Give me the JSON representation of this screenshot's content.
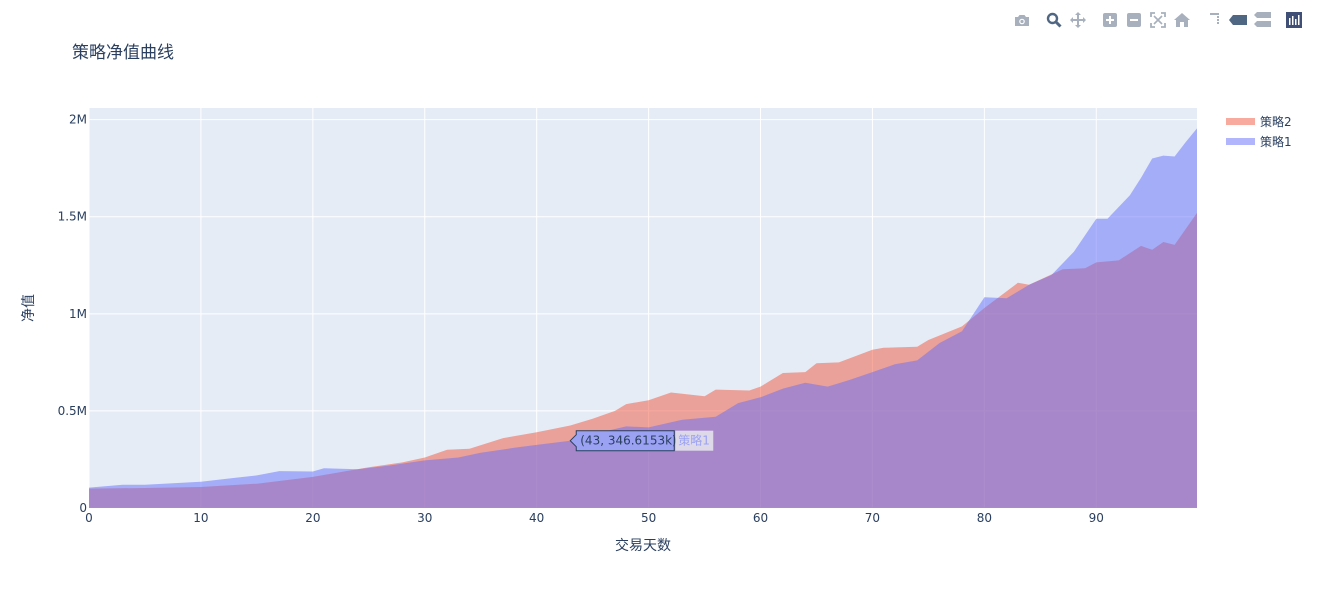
{
  "modebar": {
    "icons": [
      "camera-icon",
      "zoom-icon",
      "pan-icon",
      "zoom-in-icon",
      "zoom-out-icon",
      "autoscale-icon",
      "reset-axes-icon",
      "spike-lines-icon",
      "hover-closest-icon",
      "hover-compare-icon",
      "plotly-logo-icon"
    ]
  },
  "colors": {
    "series1": "#636efa",
    "series2": "#ef553b",
    "plot_bg": "#e5ecf6",
    "grid": "#ffffff",
    "text": "#2a3f5f"
  },
  "hover": {
    "label": "(43, 346.6153k)",
    "series_name": "策略1",
    "x": 43,
    "y": 346615.3
  },
  "chart_data": {
    "type": "area",
    "title": "策略净值曲线",
    "xlabel": "交易天数",
    "ylabel": "净值",
    "xlim": [
      0,
      99
    ],
    "ylim": [
      0,
      2060000
    ],
    "x_ticks": [
      0,
      10,
      20,
      30,
      40,
      50,
      60,
      70,
      80,
      90
    ],
    "y_ticks": [
      {
        "value": 0,
        "label": "0"
      },
      {
        "value": 500000,
        "label": "0.5M"
      },
      {
        "value": 1000000,
        "label": "1M"
      },
      {
        "value": 1500000,
        "label": "1.5M"
      },
      {
        "value": 2000000,
        "label": "2M"
      }
    ],
    "grid": true,
    "legend_position": "top-right",
    "series": [
      {
        "name": "策略2",
        "color": "#ef553b",
        "points": [
          [
            0,
            100000
          ],
          [
            5,
            103000
          ],
          [
            10,
            108000
          ],
          [
            15,
            125000
          ],
          [
            20,
            160000
          ],
          [
            25,
            210000
          ],
          [
            28,
            235000
          ],
          [
            30,
            260000
          ],
          [
            32,
            300000
          ],
          [
            34,
            305000
          ],
          [
            37,
            360000
          ],
          [
            40,
            390000
          ],
          [
            43,
            425000
          ],
          [
            45,
            460000
          ],
          [
            47,
            500000
          ],
          [
            48,
            535000
          ],
          [
            50,
            555000
          ],
          [
            52,
            595000
          ],
          [
            55,
            575000
          ],
          [
            56,
            610000
          ],
          [
            59,
            605000
          ],
          [
            60,
            625000
          ],
          [
            62,
            695000
          ],
          [
            64,
            700000
          ],
          [
            65,
            745000
          ],
          [
            67,
            750000
          ],
          [
            70,
            815000
          ],
          [
            71,
            825000
          ],
          [
            74,
            830000
          ],
          [
            75,
            865000
          ],
          [
            78,
            935000
          ],
          [
            80,
            1030000
          ],
          [
            83,
            1160000
          ],
          [
            84,
            1150000
          ],
          [
            87,
            1230000
          ],
          [
            89,
            1235000
          ],
          [
            90,
            1265000
          ],
          [
            92,
            1275000
          ],
          [
            94,
            1350000
          ],
          [
            95,
            1330000
          ],
          [
            96,
            1370000
          ],
          [
            97,
            1355000
          ],
          [
            99,
            1520000
          ]
        ]
      },
      {
        "name": "策略1",
        "color": "#636efa",
        "points": [
          [
            0,
            105000
          ],
          [
            3,
            120000
          ],
          [
            5,
            120000
          ],
          [
            10,
            135000
          ],
          [
            13,
            155000
          ],
          [
            15,
            168000
          ],
          [
            17,
            190000
          ],
          [
            20,
            188000
          ],
          [
            21,
            205000
          ],
          [
            24,
            200000
          ],
          [
            27,
            220000
          ],
          [
            30,
            245000
          ],
          [
            33,
            260000
          ],
          [
            35,
            285000
          ],
          [
            38,
            310000
          ],
          [
            40,
            325000
          ],
          [
            43,
            346615
          ],
          [
            45,
            380000
          ],
          [
            48,
            420000
          ],
          [
            50,
            415000
          ],
          [
            53,
            455000
          ],
          [
            56,
            470000
          ],
          [
            58,
            540000
          ],
          [
            60,
            570000
          ],
          [
            62,
            615000
          ],
          [
            64,
            645000
          ],
          [
            66,
            625000
          ],
          [
            68,
            660000
          ],
          [
            70,
            700000
          ],
          [
            72,
            740000
          ],
          [
            74,
            760000
          ],
          [
            76,
            850000
          ],
          [
            78,
            910000
          ],
          [
            80,
            1085000
          ],
          [
            82,
            1080000
          ],
          [
            84,
            1150000
          ],
          [
            86,
            1200000
          ],
          [
            88,
            1320000
          ],
          [
            90,
            1490000
          ],
          [
            91,
            1490000
          ],
          [
            93,
            1610000
          ],
          [
            94,
            1700000
          ],
          [
            95,
            1800000
          ],
          [
            96,
            1815000
          ],
          [
            97,
            1810000
          ],
          [
            98,
            1885000
          ],
          [
            99,
            1955000
          ]
        ]
      }
    ]
  }
}
